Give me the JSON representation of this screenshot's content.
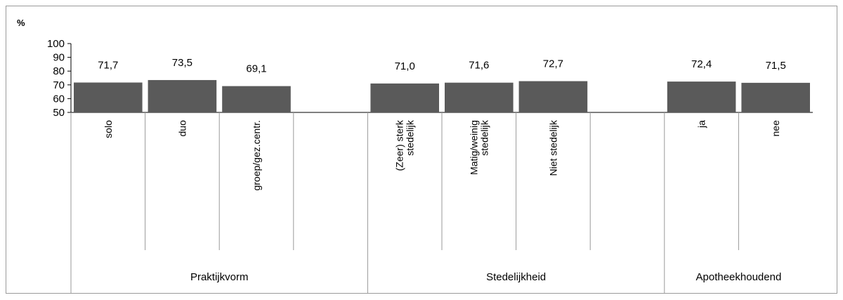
{
  "chart_data": {
    "type": "bar",
    "ylabel": "%",
    "ylim": [
      50,
      100
    ],
    "yticks": [
      "100",
      "90",
      "80",
      "70",
      "60",
      "50"
    ],
    "bar_color": "#5a5a5a",
    "grid": false,
    "categories": [
      "solo",
      "duo",
      "groep/gez.centr.",
      "",
      "(Zeer) sterk stedelijk",
      "Matig/weinig stedelijk",
      "Niet stedelijk",
      "",
      "ja",
      "nee"
    ],
    "values": [
      71.7,
      73.5,
      69.1,
      null,
      71.0,
      71.6,
      72.7,
      null,
      72.4,
      71.5
    ],
    "value_labels": [
      "71,7",
      "73,5",
      "69,1",
      "",
      "71,0",
      "71,6",
      "72,7",
      "",
      "72,4",
      "71,5"
    ],
    "category_labels": [
      [
        "solo"
      ],
      [
        "duo"
      ],
      [
        "groep/gez.centr."
      ],
      [],
      [
        "(Zeer) sterk",
        "stedelijk"
      ],
      [
        "Matig/weinig",
        "stedelijk"
      ],
      [
        "Niet stedelijk"
      ],
      [],
      [
        "ja"
      ],
      [
        "nee"
      ]
    ],
    "groups": [
      {
        "label": "Praktijkvorm",
        "start": 0,
        "end": 3
      },
      {
        "label": "Stedelijkheid",
        "start": 4,
        "end": 7
      },
      {
        "label": "Apotheekhoudend",
        "start": 8,
        "end": 9
      }
    ]
  }
}
